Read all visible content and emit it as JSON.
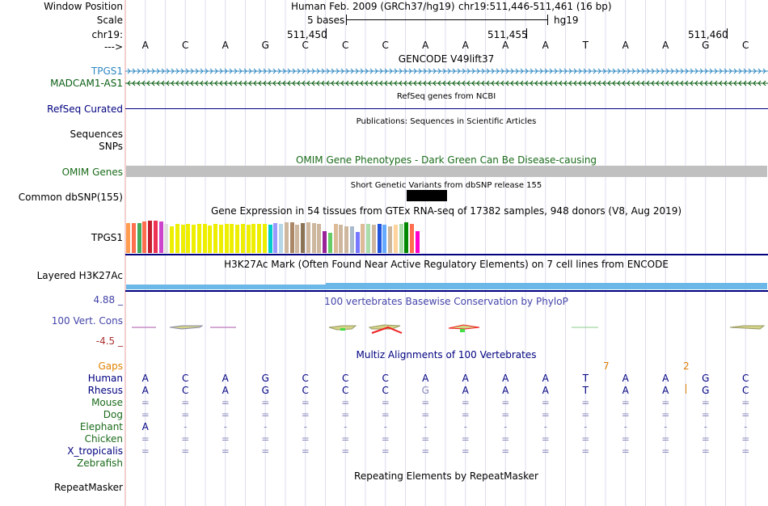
{
  "header": {
    "window_position_label": "Window Position",
    "assembly": "Human Feb. 2009 (GRCh37/hg19)",
    "position": "chr19:511,446-511,461 (16 bp)",
    "scale_label": "Scale",
    "scale_bases": "5 bases",
    "scale_db": "hg19",
    "chrom_label": "chr19:",
    "pos_ticks": [
      "511,450",
      "511,455",
      "511,460"
    ],
    "strand_label": "--->",
    "bases": [
      "A",
      "C",
      "A",
      "G",
      "C",
      "C",
      "C",
      "A",
      "A",
      "A",
      "A",
      "T",
      "A",
      "A",
      "G",
      "C"
    ]
  },
  "tracks": {
    "gencode": {
      "title": "GENCODE V49lift37",
      "genes": [
        "TPGS1",
        "MADCAM1-AS1"
      ]
    },
    "refseq": {
      "label": "RefSeq Curated",
      "title": "RefSeq genes from NCBI"
    },
    "publications": {
      "title": "Publications: Sequences in Scientific Articles",
      "labels": [
        "Sequences",
        "SNPs"
      ]
    },
    "omim": {
      "label": "OMIM Genes",
      "title": "OMIM Gene Phenotypes - Dark Green Can Be Disease-causing"
    },
    "dbsnp": {
      "label": "Common dbSNP(155)",
      "title": "Short Genetic Variants from dbSNP release 155"
    },
    "gtex": {
      "label": "TPGS1",
      "title": "Gene Expression in 54 tissues from GTEx RNA-seq of 17382 samples, 948 donors (V8, Aug 2019)",
      "tissues": [
        {
          "value": 0.74,
          "color": "#FF9C50"
        },
        {
          "value": 0.74,
          "color": "#FF6F4F"
        },
        {
          "value": 0.74,
          "color": "#43AA5C"
        },
        {
          "value": 0.78,
          "color": "#FF6F4F"
        },
        {
          "value": 0.8,
          "color": "#C21E2E"
        },
        {
          "value": 0.8,
          "color": "#EE3355"
        },
        {
          "value": 0.77,
          "color": "#CC44CC"
        },
        {
          "value": 0.72,
          "color": "#E0E0E0"
        },
        {
          "value": 0.66,
          "color": "#EEEE00"
        },
        {
          "value": 0.72,
          "color": "#EEEE00"
        },
        {
          "value": 0.7,
          "color": "#EEEE00"
        },
        {
          "value": 0.72,
          "color": "#EEEE00"
        },
        {
          "value": 0.7,
          "color": "#EEEE00"
        },
        {
          "value": 0.72,
          "color": "#EEEE00"
        },
        {
          "value": 0.72,
          "color": "#EEEE00"
        },
        {
          "value": 0.68,
          "color": "#EEEE00"
        },
        {
          "value": 0.72,
          "color": "#EEEE00"
        },
        {
          "value": 0.7,
          "color": "#EEEE00"
        },
        {
          "value": 0.72,
          "color": "#EEEE00"
        },
        {
          "value": 0.72,
          "color": "#EEEE00"
        },
        {
          "value": 0.7,
          "color": "#EEEE00"
        },
        {
          "value": 0.72,
          "color": "#EEEE00"
        },
        {
          "value": 0.7,
          "color": "#EEEE00"
        },
        {
          "value": 0.72,
          "color": "#EEEE00"
        },
        {
          "value": 0.72,
          "color": "#EEEE00"
        },
        {
          "value": 0.72,
          "color": "#EEEE00"
        },
        {
          "value": 0.7,
          "color": "#00CCCC"
        },
        {
          "value": 0.74,
          "color": "#9999FF"
        },
        {
          "value": 0.72,
          "color": "#B5D7E8"
        },
        {
          "value": 0.76,
          "color": "#CDB79E"
        },
        {
          "value": 0.76,
          "color": "#AA8866"
        },
        {
          "value": 0.7,
          "color": "#CDB79E"
        },
        {
          "value": 0.74,
          "color": "#8B7355"
        },
        {
          "value": 0.76,
          "color": "#CDB79E"
        },
        {
          "value": 0.74,
          "color": "#CDB79E"
        },
        {
          "value": 0.72,
          "color": "#CDB79E"
        },
        {
          "value": 0.54,
          "color": "#992299"
        },
        {
          "value": 0.5,
          "color": "#66CC66"
        },
        {
          "value": 0.72,
          "color": "#DDBB99"
        },
        {
          "value": 0.7,
          "color": "#CDB79E"
        },
        {
          "value": 0.66,
          "color": "#CDB79E"
        },
        {
          "value": 0.66,
          "color": "#AABBCC"
        },
        {
          "value": 0.52,
          "color": "#7777FF"
        },
        {
          "value": 0.72,
          "color": "#DDBB99"
        },
        {
          "value": 0.72,
          "color": "#AADDAA"
        },
        {
          "value": 0.7,
          "color": "#CDB79E"
        },
        {
          "value": 0.72,
          "color": "#2255DD"
        },
        {
          "value": 0.7,
          "color": "#66AAFF"
        },
        {
          "value": 0.66,
          "color": "#CDB79E"
        },
        {
          "value": 0.7,
          "color": "#FFD39B"
        },
        {
          "value": 0.72,
          "color": "#AADDAA"
        },
        {
          "value": 0.76,
          "color": "#008800"
        },
        {
          "value": 0.72,
          "color": "#FF6F4F"
        },
        {
          "value": 0.54,
          "color": "#FF00CC"
        }
      ]
    },
    "h3k27ac": {
      "label": "Layered H3K27Ac",
      "title": "H3K27Ac Mark (Often Found Near Active Regulatory Elements) on 7 cell lines from ENCODE"
    },
    "phylop": {
      "label": "100 Vert. Cons",
      "title": "100 vertebrates Basewise Conservation by PhyloP",
      "max": "4.88 _",
      "min": "-4.5 _"
    },
    "multiz": {
      "title": "Multiz Alignments of 100 Vertebrates",
      "gaps_label": "Gaps",
      "gap_marks": [
        "7",
        "2"
      ],
      "species": [
        {
          "name": "Human",
          "row": [
            "A",
            "C",
            "A",
            "G",
            "C",
            "C",
            "C",
            "A",
            "A",
            "A",
            "A",
            "T",
            "A",
            "A",
            "G",
            "C"
          ]
        },
        {
          "name": "Rhesus",
          "row": [
            "A",
            "C",
            "A",
            "G",
            "C",
            "C",
            "C",
            "G",
            "A",
            "A",
            "A",
            "T",
            "A",
            "A",
            "G",
            "C"
          ]
        },
        {
          "name": "Mouse",
          "row": [
            "=",
            "=",
            "=",
            "=",
            "=",
            "=",
            "=",
            "=",
            "=",
            "=",
            "=",
            "=",
            "=",
            "=",
            "=",
            "="
          ]
        },
        {
          "name": "Dog",
          "row": [
            "=",
            "=",
            "=",
            "=",
            "=",
            "=",
            "=",
            "=",
            "=",
            "=",
            "=",
            "=",
            "=",
            "=",
            "=",
            "="
          ]
        },
        {
          "name": "Elephant",
          "row": [
            "A",
            "-",
            "-",
            "-",
            "-",
            "-",
            "-",
            "-",
            "-",
            "-",
            "-",
            "-",
            "-",
            "-",
            "-",
            "-"
          ]
        },
        {
          "name": "Chicken",
          "row": [
            "=",
            "=",
            "=",
            "=",
            "=",
            "=",
            "=",
            "=",
            "=",
            "=",
            "=",
            "=",
            "=",
            "=",
            "=",
            "="
          ]
        },
        {
          "name": "X_tropicalis",
          "row": [
            "=",
            "=",
            "=",
            "=",
            "=",
            "=",
            "=",
            "=",
            "=",
            "=",
            "=",
            "=",
            "=",
            "=",
            "=",
            "="
          ]
        },
        {
          "name": "Zebrafish",
          "row": [
            "",
            "",
            "",
            "",
            "",
            "",
            "",
            "",
            "",
            "",
            "",
            "",
            "",
            "",
            "",
            ""
          ]
        }
      ]
    },
    "repeatmasker": {
      "label": "RepeatMasker",
      "title": "Repeating Elements by RepeatMasker"
    }
  },
  "colors": {
    "navy": "#000080",
    "tpgs1": "#2F88C2",
    "madcam": "#0A5E12",
    "omim_green": "#1A6B1A",
    "omim_gray": "#C0C0C0",
    "gap_orange": "#E08000",
    "phylop_blue": "#4444AA",
    "red_minus": "#AA3333"
  }
}
